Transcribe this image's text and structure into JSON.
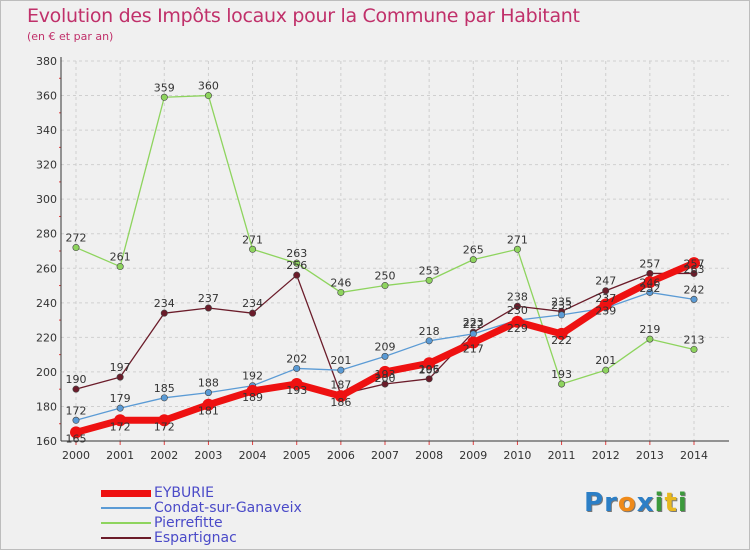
{
  "title": "Evolution des Impôts locaux pour la Commune par Habitant",
  "subtitle": "(en € et par an)",
  "logo": {
    "text": "Proxiti",
    "letters": [
      "P",
      "r",
      "o",
      "x",
      "i",
      "t",
      "i"
    ],
    "colors": [
      "#2c7fc6",
      "#2c7fc6",
      "#ef8a1a",
      "#2c7fc6",
      "#3c9a3c",
      "#e8b820",
      "#3c9a3c"
    ]
  },
  "chart_data": {
    "type": "line",
    "title": "Evolution des Impôts locaux pour la Commune par Habitant",
    "subtitle": "(en € et par an)",
    "xlabel": "",
    "ylabel": "",
    "x": [
      2000,
      2001,
      2002,
      2003,
      2004,
      2005,
      2006,
      2007,
      2008,
      2009,
      2010,
      2011,
      2012,
      2013,
      2014
    ],
    "ylim": [
      160,
      380
    ],
    "yticks": [
      160,
      180,
      200,
      220,
      240,
      260,
      280,
      300,
      320,
      340,
      360,
      380
    ],
    "grid": true,
    "legend_position": "bottom-left",
    "series": [
      {
        "name": "EYBURIE",
        "color": "#ee1111",
        "values": [
          165,
          172,
          172,
          181,
          189,
          193,
          186,
          200,
          205,
          217,
          229,
          222,
          239,
          252,
          263
        ],
        "labels": [
          "165",
          "172",
          "172",
          "181",
          "189",
          "193",
          "186",
          "200",
          "205",
          "217",
          "229",
          "222",
          "239",
          "252",
          "263"
        ]
      },
      {
        "name": "Condat-sur-Ganaveix",
        "color": "#5b9bd5",
        "values": [
          172,
          179,
          185,
          188,
          192,
          202,
          201,
          209,
          218,
          222,
          230,
          233,
          237,
          246,
          242
        ],
        "labels": [
          "172",
          "179",
          "185",
          "188",
          "192",
          "202",
          "201",
          "209",
          "218",
          "222",
          "230",
          "233",
          "237",
          "246",
          "242"
        ]
      },
      {
        "name": "Pierrefitte",
        "color": "#8ed45e",
        "values": [
          272,
          261,
          359,
          360,
          271,
          263,
          246,
          250,
          253,
          265,
          271,
          193,
          201,
          219,
          213
        ],
        "labels": [
          "272",
          "261",
          "359",
          "360",
          "271",
          "263",
          "246",
          "250",
          "253",
          "265",
          "271",
          "193",
          "201",
          "219",
          "213"
        ]
      },
      {
        "name": "Espartignac",
        "color": "#6b1c2a",
        "values": [
          190,
          197,
          234,
          237,
          234,
          256,
          187,
          193,
          196,
          223,
          238,
          235,
          247,
          257,
          257
        ],
        "labels": [
          "190",
          "197",
          "234",
          "237",
          "234",
          "256",
          "187",
          "193",
          "196",
          "223",
          "238",
          "235",
          "247",
          "257",
          "257"
        ]
      }
    ]
  }
}
